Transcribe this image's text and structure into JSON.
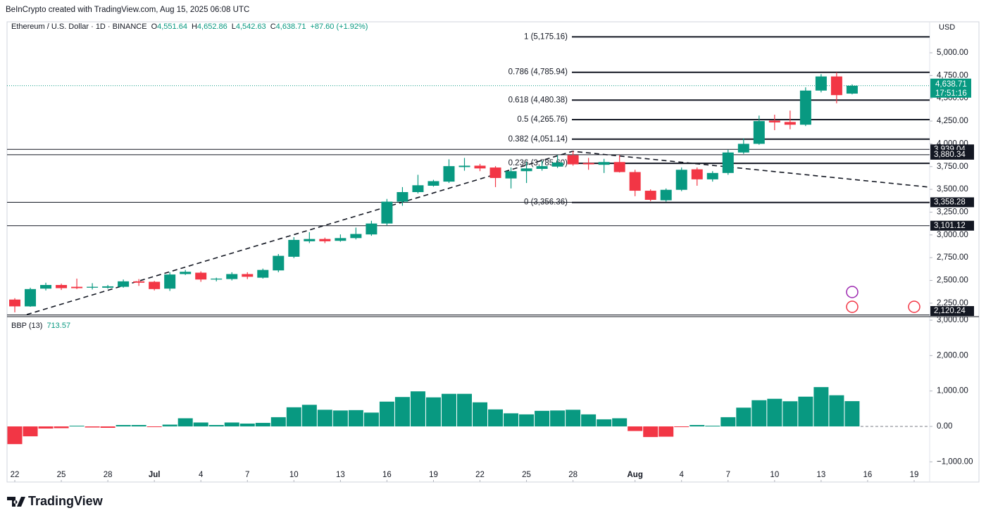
{
  "header": {
    "attribution": "BeInCrypto created with TradingView.com, Aug 15, 2025 06:08 UTC",
    "symbol": "Ethereum / U.S. Dollar · 1D · BINANCE",
    "ohlc": [
      {
        "label": "O",
        "value": "4,551.64"
      },
      {
        "label": "H",
        "value": "4,652.86"
      },
      {
        "label": "L",
        "value": "4,542.63"
      },
      {
        "label": "C",
        "value": "4,638.71"
      }
    ],
    "change": "+87.60 (+1.92%)",
    "currency": "USD",
    "countdown": "17:51:16"
  },
  "chart_data": [
    {
      "type": "candlestick",
      "x": [
        0,
        1,
        2,
        3,
        4,
        5,
        6,
        7,
        8,
        9,
        10,
        11,
        12,
        13,
        14,
        15,
        16,
        17,
        18,
        19,
        20,
        21,
        22,
        23,
        24,
        25,
        26,
        27,
        28,
        29,
        30,
        31,
        32,
        33,
        34,
        35,
        36,
        37,
        38,
        39,
        40,
        41,
        42,
        43,
        44,
        45,
        46,
        47,
        48,
        49,
        50,
        51,
        52,
        53,
        54
      ],
      "open": [
        2290,
        2215,
        2410,
        2450,
        2430,
        2420,
        2420,
        2430,
        2490,
        2485,
        2410,
        2570,
        2585,
        2510,
        2515,
        2570,
        2530,
        2610,
        2760,
        2930,
        2955,
        2935,
        2965,
        3005,
        3125,
        3365,
        3470,
        3540,
        3585,
        3745,
        3760,
        3740,
        3620,
        3700,
        3725,
        3750,
        3875,
        3790,
        3770,
        3800,
        3690,
        3485,
        3380,
        3495,
        3720,
        3610,
        3680,
        3905,
        4000,
        4255,
        4240,
        4210,
        4585,
        4740,
        4551.64
      ],
      "high": [
        2305,
        2420,
        2475,
        2465,
        2520,
        2470,
        2450,
        2510,
        2515,
        2495,
        2590,
        2615,
        2600,
        2530,
        2590,
        2590,
        2630,
        2790,
        2975,
        3030,
        2970,
        3005,
        3080,
        3155,
        3395,
        3525,
        3660,
        3605,
        3830,
        3845,
        3780,
        3755,
        3740,
        3800,
        3815,
        3875,
        3920,
        3845,
        3835,
        3875,
        3715,
        3500,
        3510,
        3740,
        3740,
        3700,
        3935,
        4060,
        4310,
        4320,
        4365,
        4620,
        4765,
        4785,
        4652.86
      ],
      "low": [
        2150,
        2210,
        2390,
        2395,
        2405,
        2400,
        2410,
        2420,
        2440,
        2390,
        2385,
        2560,
        2485,
        2490,
        2500,
        2515,
        2520,
        2590,
        2745,
        2910,
        2910,
        2925,
        2950,
        2990,
        3105,
        3320,
        3455,
        3530,
        3570,
        3705,
        3700,
        3525,
        3510,
        3570,
        3705,
        3735,
        3760,
        3715,
        3680,
        3685,
        3425,
        3370,
        3365,
        3480,
        3540,
        3585,
        3660,
        3890,
        3990,
        4150,
        4160,
        4195,
        4565,
        4445,
        4542.63
      ],
      "close": [
        2215,
        2405,
        2450,
        2415,
        2415,
        2430,
        2435,
        2490,
        2475,
        2405,
        2565,
        2595,
        2510,
        2520,
        2570,
        2540,
        2615,
        2770,
        2945,
        2955,
        2930,
        2965,
        3010,
        3125,
        3365,
        3470,
        3545,
        3590,
        3755,
        3760,
        3730,
        3625,
        3700,
        3730,
        3755,
        3795,
        3775,
        3775,
        3800,
        3690,
        3485,
        3385,
        3495,
        3715,
        3610,
        3680,
        3905,
        4000,
        4250,
        4235,
        4210,
        4585,
        4740,
        4535,
        4638.71
      ],
      "up_color": "#089981",
      "down_color": "#f23645",
      "xlim": [
        -0.5,
        59
      ],
      "ylim": [
        2110,
        5340
      ],
      "yticks": [
        {
          "value": 2250,
          "label": "2,250.00"
        },
        {
          "value": 2500,
          "label": "2,500.00"
        },
        {
          "value": 2750,
          "label": "2,750.00"
        },
        {
          "value": 3000,
          "label": "3,000.00"
        },
        {
          "value": 3250,
          "label": "3,250.00"
        },
        {
          "value": 3500,
          "label": "3,500.00"
        },
        {
          "value": 3750,
          "label": "3,750.00"
        },
        {
          "value": 4000,
          "label": "4,000.00"
        },
        {
          "value": 4250,
          "label": "4,250.00"
        },
        {
          "value": 4500,
          "label": "4,500.00"
        },
        {
          "value": 4750,
          "label": "4,750.00"
        },
        {
          "value": 5000,
          "label": "5,000.00"
        }
      ],
      "fib_levels": [
        {
          "value": 5175.16,
          "label": "1 (5,175.16)"
        },
        {
          "value": 4785.94,
          "label": "0.786 (4,785.94)"
        },
        {
          "value": 4480.38,
          "label": "0.618 (4,480.38)"
        },
        {
          "value": 4265.76,
          "label": "0.5 (4,265.76)"
        },
        {
          "value": 4051.14,
          "label": "0.382 (4,051.14)"
        },
        {
          "value": 3785.6,
          "label": "0.236 (3,785.60)"
        },
        {
          "value": 3356.36,
          "label": "0 (3,356.36)"
        }
      ],
      "levels": [
        {
          "value": 3939.04,
          "label": "3,939.04"
        },
        {
          "value": 3880.34,
          "label": "3,880.34"
        },
        {
          "value": 3358.28,
          "label": "3,358.28"
        },
        {
          "value": 3101.12,
          "label": "3,101.12"
        },
        {
          "value": 2120.24,
          "label": "2,120.24"
        }
      ],
      "last_price": {
        "value": 4638.71,
        "label": "4,638.71"
      }
    },
    {
      "type": "bar",
      "title": "BBP (13)",
      "x": [
        0,
        1,
        2,
        3,
        4,
        5,
        6,
        7,
        8,
        9,
        10,
        11,
        12,
        13,
        14,
        15,
        16,
        17,
        18,
        19,
        20,
        21,
        22,
        23,
        24,
        25,
        26,
        27,
        28,
        29,
        30,
        31,
        32,
        33,
        34,
        35,
        36,
        37,
        38,
        39,
        40,
        41,
        42,
        43,
        44,
        45,
        46,
        47,
        48,
        49,
        50,
        51,
        52,
        53,
        54
      ],
      "values": [
        -500,
        -280,
        -60,
        -50,
        20,
        -30,
        -40,
        40,
        40,
        -20,
        50,
        230,
        110,
        40,
        110,
        80,
        100,
        260,
        540,
        610,
        470,
        450,
        460,
        390,
        700,
        830,
        990,
        820,
        920,
        920,
        680,
        480,
        370,
        340,
        440,
        450,
        470,
        340,
        200,
        230,
        -130,
        -300,
        -290,
        -20,
        40,
        20,
        260,
        530,
        740,
        780,
        710,
        840,
        1110,
        880,
        713.57
      ],
      "up_color": "#089981",
      "down_color": "#f23645",
      "xlim": [
        -0.5,
        59
      ],
      "xticks": [
        {
          "value": 0,
          "label": "22"
        },
        {
          "value": 3,
          "label": "25"
        },
        {
          "value": 6,
          "label": "28"
        },
        {
          "value": 9,
          "label": "Jul"
        },
        {
          "value": 12,
          "label": "4"
        },
        {
          "value": 15,
          "label": "7"
        },
        {
          "value": 18,
          "label": "10"
        },
        {
          "value": 21,
          "label": "13"
        },
        {
          "value": 24,
          "label": "16"
        },
        {
          "value": 27,
          "label": "19"
        },
        {
          "value": 30,
          "label": "22"
        },
        {
          "value": 33,
          "label": "25"
        },
        {
          "value": 36,
          "label": "28"
        },
        {
          "value": 40,
          "label": "Aug"
        },
        {
          "value": 43,
          "label": "4"
        },
        {
          "value": 46,
          "label": "7"
        },
        {
          "value": 49,
          "label": "10"
        },
        {
          "value": 52,
          "label": "13"
        },
        {
          "value": 55,
          "label": "16"
        },
        {
          "value": 58,
          "label": "19"
        }
      ],
      "ylim": [
        -1570,
        3080
      ],
      "yticks": [
        {
          "value": -1000,
          "label": "−1,000.00"
        },
        {
          "value": 0,
          "label": "0.00"
        },
        {
          "value": 1000,
          "label": "1,000.00"
        },
        {
          "value": 2000,
          "label": "2,000.00"
        },
        {
          "value": 3000,
          "label": "3,000.00"
        }
      ]
    }
  ],
  "footer": {
    "brand": "TradingView"
  }
}
